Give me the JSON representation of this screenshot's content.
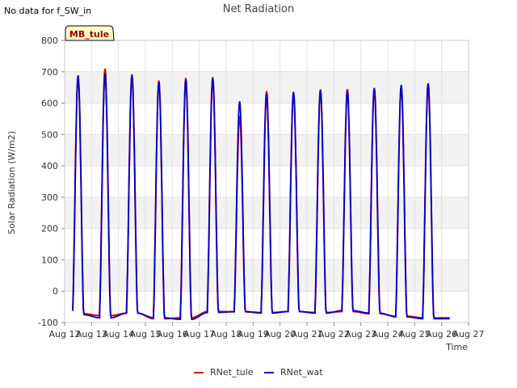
{
  "note": "No data for f_SW_in",
  "chart_data": {
    "type": "line",
    "title": "Net Radiation",
    "xlabel": "Time",
    "ylabel": "Solar Radiation (W/m2)",
    "site_badge": "MB_tule",
    "xlim": [
      12,
      27
    ],
    "ylim": [
      -100,
      800
    ],
    "x_ticks": [
      {
        "value": 12,
        "label": "Aug 12"
      },
      {
        "value": 13,
        "label": "Aug 13"
      },
      {
        "value": 14,
        "label": "Aug 14"
      },
      {
        "value": 15,
        "label": "Aug 15"
      },
      {
        "value": 16,
        "label": "Aug 16"
      },
      {
        "value": 17,
        "label": "Aug 17"
      },
      {
        "value": 18,
        "label": "Aug 18"
      },
      {
        "value": 19,
        "label": "Aug 19"
      },
      {
        "value": 20,
        "label": "Aug 20"
      },
      {
        "value": 21,
        "label": "Aug 21"
      },
      {
        "value": 22,
        "label": "Aug 22"
      },
      {
        "value": 23,
        "label": "Aug 23"
      },
      {
        "value": 24,
        "label": "Aug 24"
      },
      {
        "value": 25,
        "label": "Aug 25"
      },
      {
        "value": 26,
        "label": "Aug 26"
      },
      {
        "value": 27,
        "label": "Aug 27"
      }
    ],
    "y_ticks": [
      -100,
      0,
      100,
      200,
      300,
      400,
      500,
      600,
      700,
      800
    ],
    "grid": true,
    "legend": "bottom-center",
    "x_range": [
      12.3,
      26.3
    ],
    "series": [
      {
        "name": "RNet_tule",
        "color": "#dd0000",
        "daily": [
          {
            "day": 12,
            "peak": 688,
            "night": -72
          },
          {
            "day": 13,
            "peak": 710,
            "night": -78
          },
          {
            "day": 14,
            "peak": 692,
            "night": -70
          },
          {
            "day": 15,
            "peak": 672,
            "night": -88
          },
          {
            "day": 16,
            "peak": 680,
            "night": -85
          },
          {
            "day": 17,
            "peak": 683,
            "night": -65
          },
          {
            "day": 18,
            "peak": 560,
            "night": -66
          },
          {
            "day": 19,
            "peak": 638,
            "night": -68
          },
          {
            "day": 20,
            "peak": 633,
            "night": -65
          },
          {
            "day": 21,
            "peak": 643,
            "night": -68
          },
          {
            "day": 22,
            "peak": 645,
            "night": -65
          },
          {
            "day": 23,
            "peak": 648,
            "night": -72
          },
          {
            "day": 24,
            "peak": 655,
            "night": -80
          },
          {
            "day": 25,
            "peak": 662,
            "night": -85
          }
        ]
      },
      {
        "name": "RNet_wat",
        "color": "#0000cc",
        "daily": [
          {
            "day": 12,
            "peak": 688,
            "night": -75
          },
          {
            "day": 13,
            "peak": 695,
            "night": -85
          },
          {
            "day": 14,
            "peak": 688,
            "night": -70
          },
          {
            "day": 15,
            "peak": 668,
            "night": -85
          },
          {
            "day": 16,
            "peak": 675,
            "night": -90
          },
          {
            "day": 17,
            "peak": 680,
            "night": -68
          },
          {
            "day": 18,
            "peak": 606,
            "night": -65
          },
          {
            "day": 19,
            "peak": 630,
            "night": -70
          },
          {
            "day": 20,
            "peak": 636,
            "night": -65
          },
          {
            "day": 21,
            "peak": 643,
            "night": -70
          },
          {
            "day": 22,
            "peak": 640,
            "night": -62
          },
          {
            "day": 23,
            "peak": 648,
            "night": -70
          },
          {
            "day": 24,
            "peak": 658,
            "night": -82
          },
          {
            "day": 25,
            "peak": 663,
            "night": -88
          }
        ]
      }
    ]
  }
}
